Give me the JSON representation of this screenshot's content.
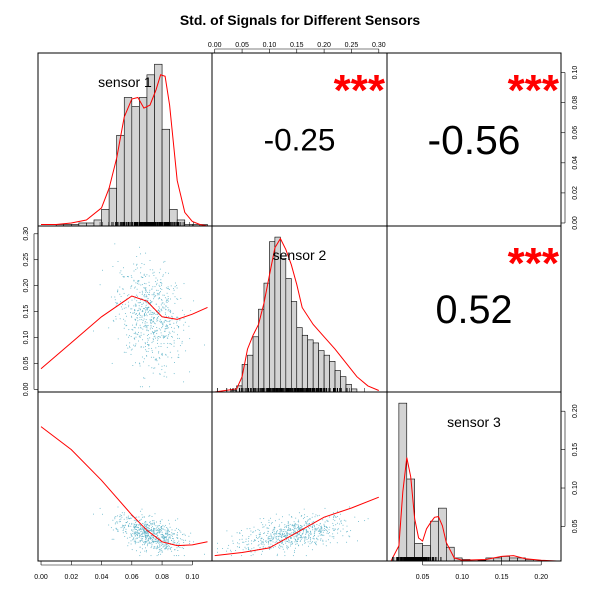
{
  "title": "Std. of Signals for Different Sensors",
  "colors": {
    "hist_fill": "#d3d3d3",
    "density": "#ff0000",
    "smooth": "#ff0000",
    "points": "#5fb3c8",
    "stars": "#ff0000",
    "frame": "#000000"
  },
  "chart_data": {
    "type": "scatter",
    "variables": [
      "sensor 1",
      "sensor 2",
      "sensor 3"
    ],
    "ranges": [
      [
        -0.002,
        0.113
      ],
      [
        -0.005,
        0.315
      ],
      [
        0.005,
        0.225
      ]
    ],
    "ticks": [
      [
        0.0,
        0.02,
        0.04,
        0.06,
        0.08,
        0.1
      ],
      [
        0.0,
        0.05,
        0.1,
        0.15,
        0.2,
        0.25,
        0.3
      ],
      [
        0.05,
        0.1,
        0.15,
        0.2
      ]
    ],
    "tick_labels": [
      [
        "0.00",
        "0.02",
        "0.04",
        "0.06",
        "0.08",
        "0.10"
      ],
      [
        "0.00",
        "0.05",
        "0.10",
        "0.15",
        "0.20",
        "0.25",
        "0.30"
      ],
      [
        "0.05",
        "0.10",
        "0.15",
        "0.20"
      ]
    ],
    "correlations": [
      {
        "pair": [
          "sensor 1",
          "sensor 2"
        ],
        "value": "-0.25",
        "stars": "***"
      },
      {
        "pair": [
          "sensor 1",
          "sensor 3"
        ],
        "value": "-0.56",
        "stars": "***"
      },
      {
        "pair": [
          "sensor 2",
          "sensor 3"
        ],
        "value": "0.52",
        "stars": "***"
      }
    ],
    "histograms": [
      {
        "variable": "sensor 1",
        "bin_width": 0.005,
        "bin_start": 0.0,
        "density_max": 0.107,
        "densities": [
          0.0,
          0.0,
          0.001,
          0.001,
          0.001,
          0.002,
          0.002,
          0.004,
          0.011,
          0.025,
          0.06,
          0.085,
          0.079,
          0.085,
          0.1,
          0.107,
          0.064,
          0.011,
          0.004,
          0.001,
          0.001,
          0.001,
          0.0
        ]
      },
      {
        "variable": "sensor 2",
        "bin_width": 0.01,
        "bin_start": 0.0,
        "density_max": 0.101,
        "densities": [
          0.0,
          0.0,
          0.0,
          0.001,
          0.004,
          0.018,
          0.024,
          0.036,
          0.054,
          0.071,
          0.098,
          0.101,
          0.087,
          0.074,
          0.059,
          0.042,
          0.037,
          0.034,
          0.032,
          0.027,
          0.024,
          0.02,
          0.014,
          0.01,
          0.005,
          0.002
        ]
      },
      {
        "variable": "sensor 3",
        "bin_width": 0.01,
        "bin_start": 0.02,
        "density_max": 0.206,
        "densities": [
          0.206,
          0.107,
          0.023,
          0.02,
          0.052,
          0.069,
          0.018,
          0.004,
          0.002,
          0.0,
          0.001,
          0.004,
          0.004,
          0.006,
          0.004,
          0.004,
          0.002,
          0.0
        ]
      }
    ],
    "density_curves": [
      {
        "variable": "sensor 1",
        "x": [
          0.0,
          0.01,
          0.02,
          0.03,
          0.04,
          0.045,
          0.05,
          0.055,
          0.06,
          0.064,
          0.068,
          0.072,
          0.076,
          0.079,
          0.082,
          0.085,
          0.09,
          0.095,
          0.1,
          0.105,
          0.11
        ],
        "y": [
          0.001,
          0.001,
          0.002,
          0.004,
          0.012,
          0.025,
          0.045,
          0.072,
          0.084,
          0.085,
          0.078,
          0.08,
          0.09,
          0.1,
          0.099,
          0.08,
          0.03,
          0.009,
          0.003,
          0.001,
          0.0
        ]
      },
      {
        "variable": "sensor 2",
        "x": [
          0.0,
          0.04,
          0.05,
          0.06,
          0.07,
          0.08,
          0.09,
          0.1,
          0.11,
          0.12,
          0.13,
          0.14,
          0.15,
          0.16,
          0.18,
          0.2,
          0.22,
          0.24,
          0.26,
          0.28,
          0.3
        ],
        "y": [
          0.0,
          0.002,
          0.01,
          0.028,
          0.037,
          0.044,
          0.058,
          0.076,
          0.094,
          0.1,
          0.093,
          0.083,
          0.07,
          0.055,
          0.044,
          0.036,
          0.028,
          0.019,
          0.01,
          0.004,
          0.001
        ]
      },
      {
        "variable": "sensor 3",
        "x": [
          0.01,
          0.02,
          0.025,
          0.03,
          0.035,
          0.04,
          0.045,
          0.05,
          0.055,
          0.06,
          0.065,
          0.07,
          0.075,
          0.08,
          0.09,
          0.1,
          0.13,
          0.15,
          0.165,
          0.18,
          0.2,
          0.22
        ],
        "y": [
          0.0,
          0.02,
          0.09,
          0.135,
          0.11,
          0.055,
          0.03,
          0.026,
          0.042,
          0.05,
          0.057,
          0.058,
          0.046,
          0.024,
          0.004,
          0.001,
          0.002,
          0.006,
          0.007,
          0.003,
          0.001,
          0.0
        ]
      }
    ],
    "smooth_lines": [
      {
        "x_var": "sensor 1",
        "y_var": "sensor 2",
        "x": [
          0.0,
          0.02,
          0.04,
          0.06,
          0.07,
          0.08,
          0.09,
          0.1,
          0.11
        ],
        "y": [
          0.04,
          0.09,
          0.14,
          0.18,
          0.17,
          0.14,
          0.135,
          0.145,
          0.158
        ]
      },
      {
        "x_var": "sensor 1",
        "y_var": "sensor 3",
        "x": [
          0.0,
          0.02,
          0.04,
          0.06,
          0.07,
          0.08,
          0.09,
          0.1,
          0.11
        ],
        "y": [
          0.18,
          0.15,
          0.11,
          0.065,
          0.045,
          0.03,
          0.025,
          0.026,
          0.03
        ]
      },
      {
        "x_var": "sensor 2",
        "y_var": "sensor 3",
        "x": [
          0.0,
          0.05,
          0.1,
          0.15,
          0.2,
          0.25,
          0.3
        ],
        "y": [
          0.012,
          0.016,
          0.022,
          0.042,
          0.062,
          0.074,
          0.088
        ]
      }
    ],
    "scatter_clusters": [
      {
        "variable": "sensor 1",
        "mean": 0.072,
        "sd": 0.011
      },
      {
        "variable": "sensor 2",
        "mean": 0.145,
        "sd": 0.05
      },
      {
        "variable": "sensor 3",
        "mean": 0.04,
        "sd": 0.012
      }
    ]
  }
}
